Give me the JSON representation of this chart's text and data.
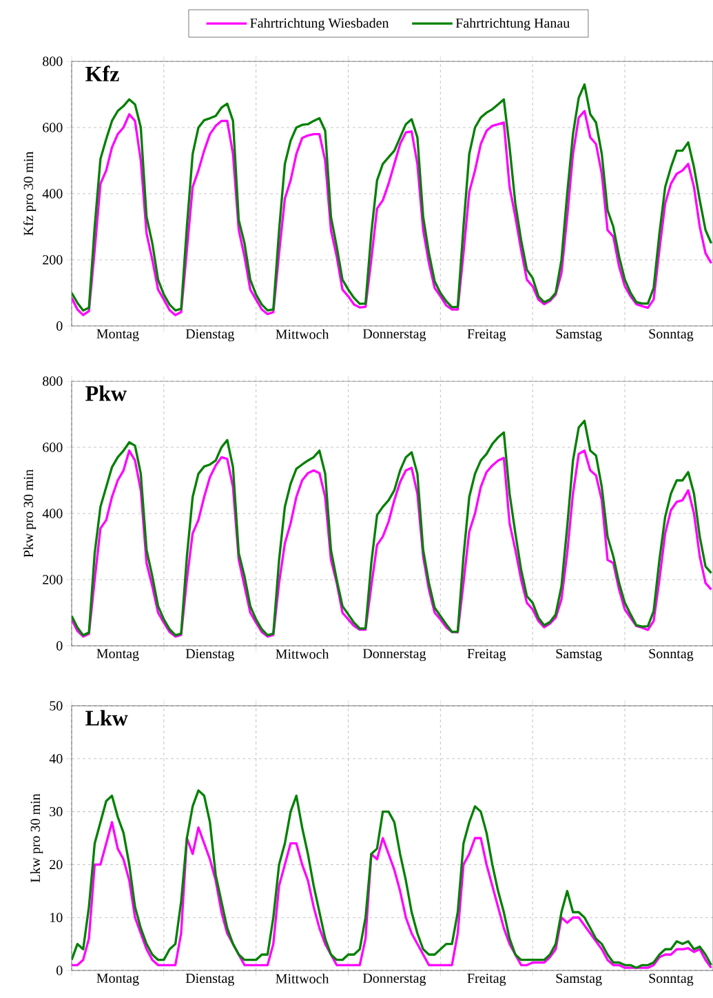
{
  "chart_data": [
    {
      "type": "line",
      "title": "Kfz",
      "ylabel": "Kfz pro 30 min",
      "grid": true,
      "legend": "top",
      "ylim": [
        0,
        800
      ],
      "yticks": [
        0,
        200,
        400,
        600,
        800
      ],
      "categories": [
        null,
        null,
        null,
        null,
        null,
        null,
        null,
        null,
        "Montag",
        null,
        null,
        null,
        null,
        null,
        null,
        null,
        null,
        null,
        null,
        null,
        null,
        null,
        null,
        null,
        "Dienstag",
        null,
        null,
        null,
        null,
        null,
        null,
        null,
        null,
        null,
        null,
        null,
        null,
        null,
        null,
        null,
        "Mittwoch",
        null,
        null,
        null,
        null,
        null,
        null,
        null,
        null,
        null,
        null,
        null,
        null,
        null,
        null,
        null,
        "Donnerstag",
        null,
        null,
        null,
        null,
        null,
        null,
        null,
        null,
        null,
        null,
        null,
        null,
        null,
        null,
        null,
        "Freitag",
        null,
        null,
        null,
        null,
        null,
        null,
        null,
        null,
        null,
        null,
        null,
        null,
        null,
        null,
        null,
        "Samstag",
        null,
        null,
        null,
        null,
        null,
        null,
        null,
        null,
        null,
        null,
        null,
        null,
        null,
        null,
        null,
        "Sonntag",
        null,
        null,
        null,
        null,
        null,
        null,
        null
      ],
      "series": [
        {
          "name": "Fahrtrichtung Wiesbaden",
          "color": "#ff00ff",
          "values": [
            85,
            50,
            33,
            45,
            230,
            430,
            470,
            540,
            580,
            600,
            640,
            620,
            500,
            280,
            200,
            110,
            80,
            48,
            33,
            42,
            230,
            420,
            470,
            530,
            580,
            605,
            620,
            620,
            520,
            290,
            210,
            110,
            80,
            50,
            36,
            42,
            220,
            385,
            440,
            520,
            568,
            576,
            580,
            580,
            500,
            290,
            210,
            110,
            90,
            65,
            56,
            58,
            200,
            355,
            380,
            430,
            490,
            550,
            585,
            588,
            490,
            290,
            190,
            115,
            90,
            62,
            50,
            50,
            220,
            405,
            470,
            550,
            590,
            605,
            610,
            615,
            420,
            330,
            230,
            140,
            120,
            80,
            66,
            76,
            95,
            160,
            330,
            520,
            630,
            650,
            570,
            550,
            460,
            290,
            270,
            180,
            120,
            90,
            66,
            60,
            55,
            80,
            230,
            370,
            430,
            460,
            470,
            490,
            420,
            300,
            220,
            190
          ]
        },
        {
          "name": "Fahrtrichtung Hanau",
          "color": "#008000",
          "values": [
            100,
            70,
            47,
            55,
            300,
            505,
            565,
            620,
            650,
            665,
            685,
            670,
            600,
            330,
            250,
            140,
            95,
            65,
            47,
            52,
            300,
            520,
            600,
            622,
            628,
            635,
            660,
            672,
            620,
            320,
            250,
            140,
            95,
            65,
            47,
            50,
            290,
            490,
            560,
            600,
            608,
            610,
            620,
            628,
            590,
            330,
            240,
            140,
            110,
            85,
            67,
            68,
            280,
            440,
            490,
            510,
            530,
            570,
            610,
            625,
            570,
            330,
            220,
            135,
            100,
            75,
            57,
            58,
            300,
            520,
            600,
            630,
            645,
            655,
            670,
            685,
            540,
            370,
            260,
            170,
            145,
            90,
            72,
            80,
            100,
            200,
            400,
            580,
            690,
            730,
            640,
            615,
            520,
            350,
            300,
            210,
            140,
            100,
            72,
            68,
            68,
            115,
            280,
            420,
            480,
            530,
            530,
            555,
            480,
            380,
            290,
            250
          ]
        }
      ]
    },
    {
      "type": "line",
      "title": "Pkw",
      "ylabel": "Pkw pro 30 min",
      "grid": true,
      "ylim": [
        0,
        800
      ],
      "yticks": [
        0,
        200,
        400,
        600,
        800
      ],
      "categories": [
        null,
        null,
        null,
        null,
        null,
        null,
        null,
        null,
        "Montag",
        null,
        null,
        null,
        null,
        null,
        null,
        null,
        null,
        null,
        null,
        null,
        null,
        null,
        null,
        null,
        "Dienstag",
        null,
        null,
        null,
        null,
        null,
        null,
        null,
        null,
        null,
        null,
        null,
        null,
        null,
        null,
        null,
        "Mittwoch",
        null,
        null,
        null,
        null,
        null,
        null,
        null,
        null,
        null,
        null,
        null,
        null,
        null,
        null,
        null,
        "Donnerstag",
        null,
        null,
        null,
        null,
        null,
        null,
        null,
        null,
        null,
        null,
        null,
        null,
        null,
        null,
        null,
        "Freitag",
        null,
        null,
        null,
        null,
        null,
        null,
        null,
        null,
        null,
        null,
        null,
        null,
        null,
        null,
        null,
        "Samstag",
        null,
        null,
        null,
        null,
        null,
        null,
        null,
        null,
        null,
        null,
        null,
        null,
        null,
        null,
        null,
        "Sonntag",
        null,
        null,
        null,
        null,
        null,
        null,
        null
      ],
      "series": [
        {
          "color": "#ff00ff",
          "values": [
            80,
            45,
            28,
            36,
            200,
            355,
            380,
            450,
            500,
            530,
            590,
            560,
            470,
            250,
            180,
            100,
            70,
            42,
            28,
            33,
            200,
            340,
            380,
            450,
            510,
            545,
            570,
            565,
            480,
            260,
            180,
            100,
            70,
            42,
            28,
            33,
            190,
            310,
            370,
            450,
            500,
            522,
            530,
            522,
            450,
            260,
            190,
            100,
            80,
            60,
            49,
            49,
            180,
            305,
            330,
            375,
            440,
            495,
            530,
            538,
            460,
            270,
            170,
            100,
            80,
            56,
            42,
            41,
            190,
            345,
            400,
            480,
            525,
            545,
            560,
            568,
            370,
            290,
            200,
            130,
            110,
            75,
            56,
            67,
            85,
            140,
            280,
            460,
            580,
            590,
            530,
            515,
            440,
            260,
            250,
            170,
            110,
            85,
            60,
            55,
            48,
            75,
            200,
            340,
            410,
            435,
            440,
            470,
            400,
            270,
            190,
            170
          ]
        },
        {
          "color": "#008000",
          "values": [
            90,
            55,
            32,
            40,
            280,
            420,
            480,
            540,
            570,
            590,
            615,
            605,
            520,
            290,
            210,
            120,
            80,
            50,
            32,
            37,
            270,
            450,
            520,
            542,
            548,
            560,
            600,
            622,
            540,
            280,
            210,
            120,
            80,
            50,
            32,
            37,
            260,
            420,
            490,
            535,
            548,
            560,
            570,
            590,
            520,
            290,
            200,
            120,
            95,
            70,
            52,
            53,
            250,
            395,
            420,
            440,
            470,
            530,
            570,
            585,
            520,
            290,
            190,
            115,
            90,
            65,
            42,
            43,
            270,
            450,
            520,
            560,
            580,
            610,
            630,
            645,
            460,
            340,
            230,
            150,
            130,
            85,
            62,
            72,
            95,
            180,
            360,
            560,
            660,
            680,
            590,
            575,
            480,
            330,
            270,
            190,
            130,
            95,
            62,
            58,
            59,
            105,
            260,
            390,
            460,
            500,
            500,
            525,
            460,
            330,
            240,
            220
          ]
        }
      ]
    },
    {
      "type": "line",
      "title": "Lkw",
      "ylabel": "Lkw pro 30 min",
      "grid": true,
      "ylim": [
        0,
        50
      ],
      "yticks": [
        0,
        10,
        20,
        30,
        40,
        50
      ],
      "categories": [
        null,
        null,
        null,
        null,
        null,
        null,
        null,
        null,
        "Montag",
        null,
        null,
        null,
        null,
        null,
        null,
        null,
        null,
        null,
        null,
        null,
        null,
        null,
        null,
        null,
        "Dienstag",
        null,
        null,
        null,
        null,
        null,
        null,
        null,
        null,
        null,
        null,
        null,
        null,
        null,
        null,
        null,
        "Mittwoch",
        null,
        null,
        null,
        null,
        null,
        null,
        null,
        null,
        null,
        null,
        null,
        null,
        null,
        null,
        null,
        "Donnerstag",
        null,
        null,
        null,
        null,
        null,
        null,
        null,
        null,
        null,
        null,
        null,
        null,
        null,
        null,
        null,
        "Freitag",
        null,
        null,
        null,
        null,
        null,
        null,
        null,
        null,
        null,
        null,
        null,
        null,
        null,
        null,
        null,
        "Samstag",
        null,
        null,
        null,
        null,
        null,
        null,
        null,
        null,
        null,
        null,
        null,
        null,
        null,
        null,
        null,
        "Sonntag",
        null,
        null,
        null,
        null,
        null,
        null,
        null
      ],
      "series": [
        {
          "color": "#ff00ff",
          "values": [
            1,
            1,
            2,
            6,
            20,
            20,
            24,
            28,
            23,
            21,
            17,
            10,
            7,
            4,
            2,
            1,
            1,
            1,
            1,
            7,
            25,
            22,
            27,
            24,
            21,
            17,
            11,
            7,
            5,
            3,
            1,
            1,
            1,
            1,
            1,
            5,
            16,
            20,
            24,
            24,
            20,
            17,
            12,
            8,
            5,
            3,
            1,
            1,
            1,
            1,
            1,
            6,
            22,
            21,
            25,
            22,
            19,
            15,
            10,
            7,
            5,
            3,
            1,
            1,
            1,
            1,
            1,
            7,
            20,
            22,
            25,
            25,
            20,
            16,
            12,
            8,
            5,
            3,
            1,
            1,
            1.5,
            1.5,
            1.5,
            2.5,
            4,
            10,
            9,
            10,
            10,
            8.5,
            7,
            5.5,
            4,
            2,
            1,
            1,
            0.5,
            0.5,
            0.5,
            0.5,
            0.5,
            1,
            2.5,
            3,
            3,
            4,
            4,
            4.2,
            3.5,
            4,
            2,
            0.5
          ]
        },
        {
          "color": "#008000",
          "values": [
            2,
            5,
            4,
            12,
            24,
            28,
            32,
            33,
            29,
            26,
            20,
            12,
            8,
            5,
            3,
            2,
            2,
            4,
            5,
            13,
            25,
            31,
            34,
            33,
            28,
            18,
            13,
            8,
            5,
            3,
            2,
            2,
            2,
            3,
            3,
            10,
            20,
            24,
            30,
            33,
            27,
            22,
            16,
            11,
            6,
            3,
            2,
            2,
            3,
            3,
            4,
            10,
            22,
            23,
            30,
            30,
            28,
            22,
            17,
            11,
            7,
            4,
            3,
            3,
            4,
            5,
            5,
            11,
            24,
            28,
            31,
            30,
            26,
            20,
            15,
            11,
            6,
            3,
            2,
            2,
            2,
            2,
            2,
            3,
            5,
            11,
            15,
            11,
            11,
            10,
            8,
            6,
            5,
            3,
            1.5,
            1.5,
            1,
            1,
            0.5,
            1,
            1,
            1.5,
            3,
            4,
            4,
            5.5,
            5,
            5.5,
            4,
            4.5,
            3,
            1
          ]
        }
      ]
    }
  ]
}
